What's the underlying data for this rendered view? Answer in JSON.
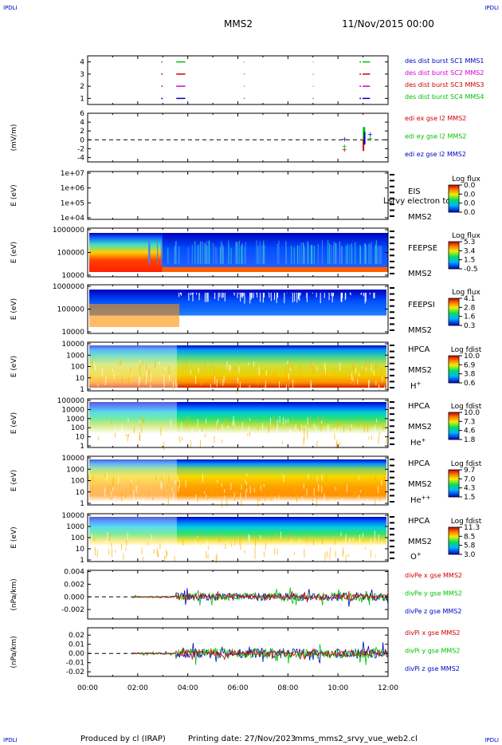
{
  "header": {
    "corner_tl": "IPDLI",
    "corner_tr": "IPDLI",
    "corner_bl": "IPDLI",
    "corner_br": "IPDLI",
    "spacecraft": "MMS2",
    "date": "11/Nov/2015 00:00"
  },
  "footer": {
    "produced_by": "Produced by cl (IRAP)",
    "printing_date": "Printing date: 27/Nov/2023",
    "filename": "mms_mms2_srvy_vue_web2.cl"
  },
  "colors": {
    "red": "#d00000",
    "green": "#00c000",
    "blue": "#0000c0",
    "magenta": "#d000d0"
  },
  "chart_data": [
    {
      "type": "scatter",
      "name": "burst",
      "x": [
        "00:00",
        "02:00",
        "04:00",
        "06:00",
        "08:00",
        "10:00",
        "12:00"
      ],
      "yticks": [
        "1",
        "2",
        "3",
        "4"
      ],
      "ylim": [
        0.5,
        4.5
      ],
      "legend": [
        "des dist burst SC1 MMS1",
        "des dist burst SC2 MMS2",
        "des dist burst SC3 MMS3",
        "des dist burst SC4 MMS4"
      ],
      "legend_colors": [
        "#0000c0",
        "#d000d0",
        "#d00000",
        "#00c000"
      ]
    },
    {
      "type": "line",
      "name": "edi",
      "ylabel": "(mV/m)",
      "yticks": [
        "6",
        "4",
        "2",
        "0",
        "-2",
        "-4"
      ],
      "ylim": [
        -5,
        6
      ],
      "legend": [
        "edi ex gse l2 MMS2",
        "edi ey gse l2 MMS2",
        "edi ez gse l2 MMS2"
      ],
      "legend_colors": [
        "#d00000",
        "#00c000",
        "#0000c0"
      ]
    },
    {
      "type": "heatmap",
      "name": "eis",
      "ylabel": "E (eV)",
      "yticks": [
        "1e+07",
        "1e+06",
        "1e+05",
        "1e+04"
      ],
      "labels": [
        "EIS",
        "MMS2"
      ],
      "overlap_text": "l srvy electron to",
      "colorbar": {
        "title": "Log flux",
        "ticks": [
          "0.0",
          "0.0",
          "0.0",
          "0.0"
        ]
      }
    },
    {
      "type": "heatmap",
      "name": "feepse",
      "ylabel": "E (eV)",
      "yticks": [
        "1000000",
        "100000",
        "10000"
      ],
      "labels": [
        "FEEPSE",
        "MMS2"
      ],
      "colorbar": {
        "title": "Log flux",
        "ticks": [
          "5.3",
          "3.4",
          "1.5",
          "-0.5"
        ]
      }
    },
    {
      "type": "heatmap",
      "name": "feepsi",
      "ylabel": "E (eV)",
      "yticks": [
        "1000000",
        "100000",
        "10000"
      ],
      "labels": [
        "FEEPSI",
        "MMS2"
      ],
      "colorbar": {
        "title": "Log flux",
        "ticks": [
          "4.1",
          "2.8",
          "1.6",
          "0.3"
        ]
      }
    },
    {
      "type": "heatmap",
      "name": "hpca-h",
      "ylabel": "E (eV)",
      "yticks": [
        "10000",
        "1000",
        "100",
        "10",
        "1"
      ],
      "labels": [
        "HPCA",
        "MMS2"
      ],
      "species": "H",
      "species_sup": "+",
      "colorbar": {
        "title": "Log fdist",
        "ticks": [
          "10.0",
          "6.9",
          "3.8",
          "0.6"
        ]
      }
    },
    {
      "type": "heatmap",
      "name": "hpca-he",
      "ylabel": "E (eV)",
      "yticks": [
        "100000",
        "10000",
        "1000",
        "100",
        "10",
        "1"
      ],
      "labels": [
        "HPCA",
        "MMS2"
      ],
      "species": "He",
      "species_sup": "+",
      "colorbar": {
        "title": "Log fdist",
        "ticks": [
          "10.0",
          "7.3",
          "4.6",
          "1.8"
        ]
      }
    },
    {
      "type": "heatmap",
      "name": "hpca-he2",
      "ylabel": "E (eV)",
      "yticks": [
        "10000",
        "1000",
        "100",
        "10",
        "1"
      ],
      "labels": [
        "HPCA",
        "MMS2"
      ],
      "species": "He",
      "species_sup": "++",
      "colorbar": {
        "title": "Log fdist",
        "ticks": [
          "9.7",
          "7.0",
          "4.3",
          "1.5"
        ]
      }
    },
    {
      "type": "heatmap",
      "name": "hpca-o",
      "ylabel": "E (eV)",
      "yticks": [
        "10000",
        "1000",
        "100",
        "10",
        "1"
      ],
      "labels": [
        "HPCA",
        "MMS2"
      ],
      "species": "O",
      "species_sup": "+",
      "colorbar": {
        "title": "Log fdist",
        "ticks": [
          "11.3",
          "8.5",
          "5.8",
          "3.0"
        ]
      }
    },
    {
      "type": "line",
      "name": "divpe",
      "ylabel": "(nPa/km)",
      "yticks": [
        "0.004",
        "0.002",
        "0.000",
        "-0.002"
      ],
      "ylim": [
        -0.0035,
        0.0042
      ],
      "legend": [
        "divPe x gse MMS2",
        "divPe y gse MMS2",
        "divPe z gse MMS2"
      ],
      "legend_colors": [
        "#d00000",
        "#00c000",
        "#0000c0"
      ]
    },
    {
      "type": "line",
      "name": "divpi",
      "ylabel": "(nPa/km)",
      "yticks": [
        "0.02",
        "0.01",
        "0.00",
        "-0.01",
        "-0.02"
      ],
      "ylim": [
        -0.025,
        0.028
      ],
      "xticks": [
        "00:00",
        "02:00",
        "04:00",
        "06:00",
        "08:00",
        "10:00",
        "12:00"
      ],
      "legend": [
        "divPi x gse MMS2",
        "divPi y gse MMS2",
        "divPi z gse MMS2"
      ],
      "legend_colors": [
        "#d00000",
        "#00c000",
        "#0000c0"
      ]
    }
  ]
}
